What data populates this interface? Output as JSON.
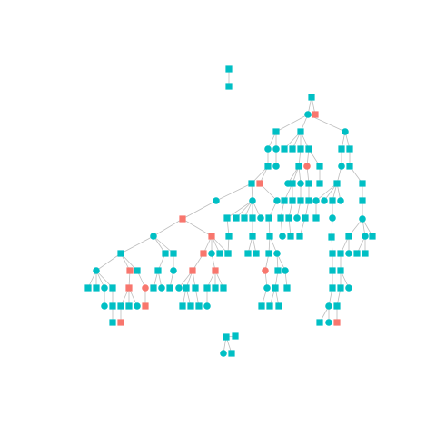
{
  "colors": {
    "primary": "#00BFC4",
    "accent": "#F8766D",
    "edge": "#BDBDBD",
    "background": "#FFFFFF"
  },
  "legend": {
    "shapes": [
      "square",
      "circle"
    ]
  },
  "components": [
    {
      "id": "pair-top",
      "nodes": 2
    },
    {
      "id": "main-tree",
      "nodes": 170
    },
    {
      "id": "small-cluster",
      "nodes": 4
    }
  ]
}
